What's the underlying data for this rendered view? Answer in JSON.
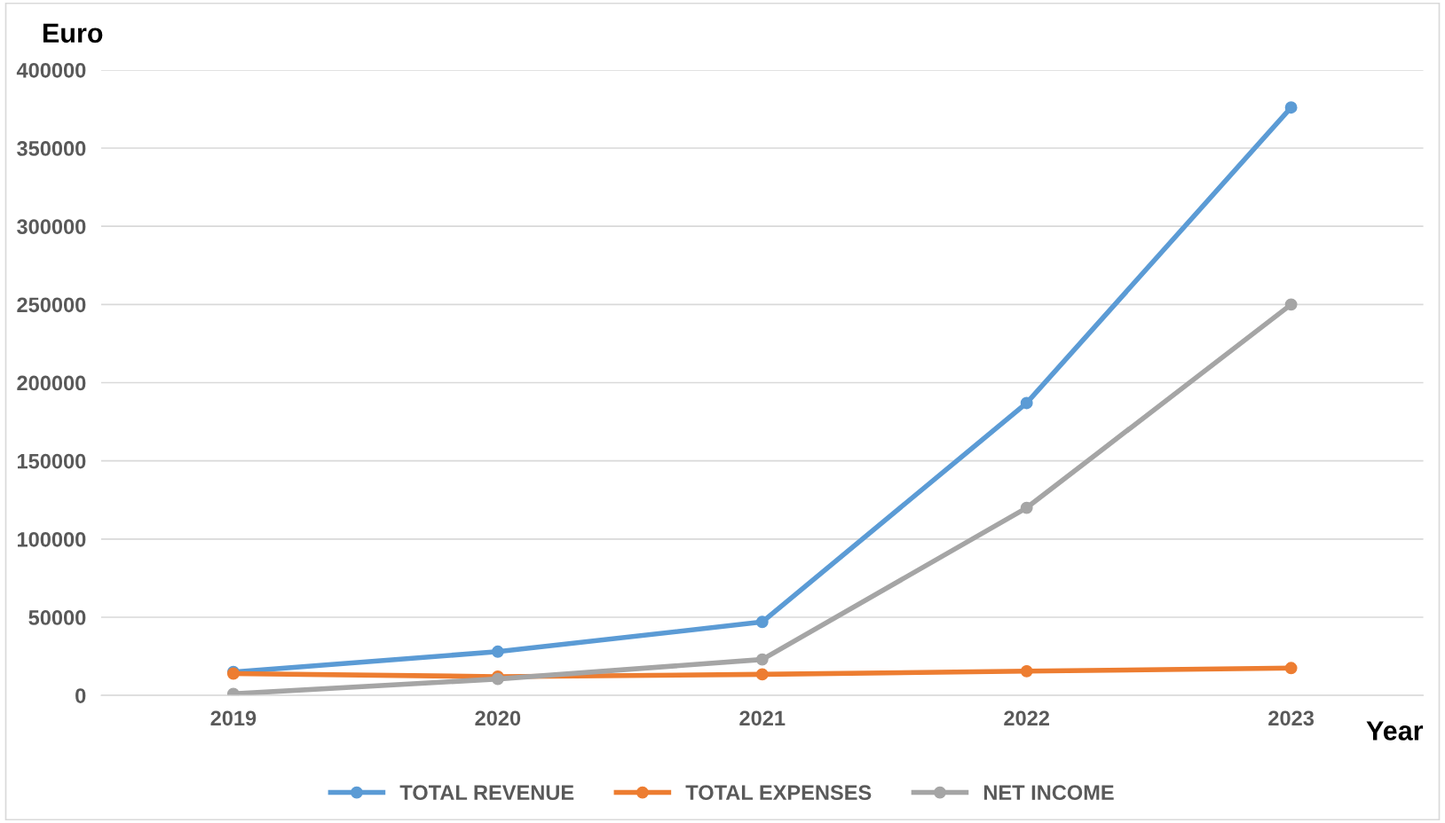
{
  "chart_data": {
    "type": "line",
    "xlabel": "Year",
    "ylabel": "Euro",
    "categories": [
      "2019",
      "2020",
      "2021",
      "2022",
      "2023"
    ],
    "series": [
      {
        "name": "TOTAL REVENUE",
        "color": "#5b9bd5",
        "values": [
          15000,
          28000,
          47000,
          187000,
          376000
        ]
      },
      {
        "name": "TOTAL EXPENSES",
        "color": "#ed7d31",
        "values": [
          14000,
          12000,
          13500,
          15500,
          17500
        ]
      },
      {
        "name": "NET INCOME",
        "color": "#a5a5a5",
        "values": [
          1000,
          10500,
          23000,
          120000,
          250000
        ]
      }
    ],
    "ylim": [
      0,
      400000
    ],
    "yticks": [
      0,
      50000,
      100000,
      150000,
      200000,
      250000,
      300000,
      350000,
      400000
    ],
    "grid": "y",
    "legend": "bottom",
    "marker": "circle",
    "line_style": "solid"
  }
}
